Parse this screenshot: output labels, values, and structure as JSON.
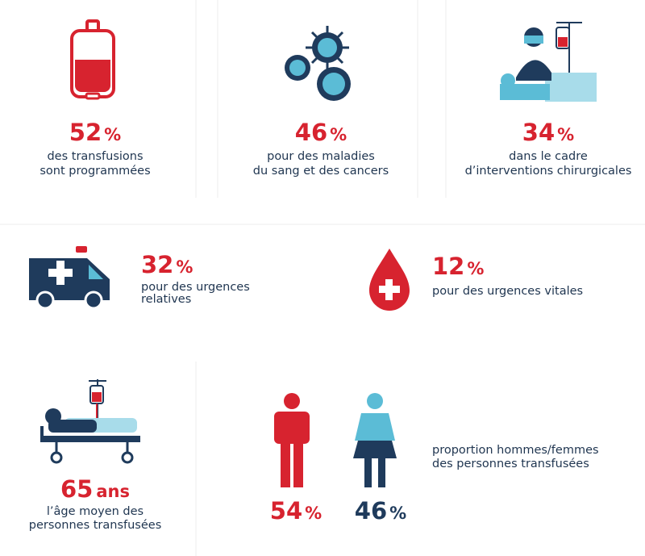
{
  "stats": [
    {
      "value": "52",
      "unit": "%",
      "lines": [
        "des transfusions",
        "sont programmées"
      ]
    },
    {
      "value": "46",
      "unit": "%",
      "lines": [
        "pour des maladies",
        "du sang et des cancers"
      ]
    },
    {
      "value": "34",
      "unit": "%",
      "lines": [
        "dans le cadre",
        "d’interventions chirurgicales"
      ]
    },
    {
      "value": "32",
      "unit": "%",
      "lines": [
        "pour des urgences",
        "relatives"
      ]
    },
    {
      "value": "12",
      "unit": "%",
      "lines": [
        "pour des urgences vitales"
      ]
    },
    {
      "value": "65",
      "unit": "ans",
      "lines": [
        "l’âge moyen des",
        "personnes transfusées"
      ]
    }
  ],
  "gender": {
    "men": {
      "value": "54",
      "unit": "%"
    },
    "women": {
      "value": "46",
      "unit": "%"
    },
    "lines": [
      "proportion hommes/femmes",
      "des personnes transfusées"
    ]
  }
}
